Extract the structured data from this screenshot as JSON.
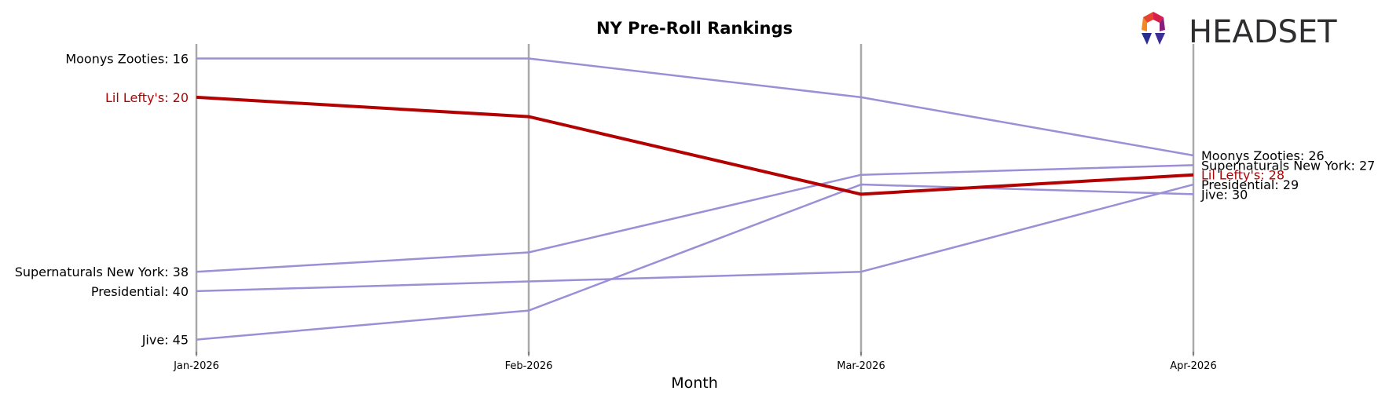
{
  "chart_data": {
    "type": "line",
    "title": "NY Pre-Roll Rankings",
    "xlabel": "Month",
    "ylabel": "",
    "x": [
      "Jan-2026",
      "Feb-2026",
      "Mar-2026",
      "Apr-2026"
    ],
    "y_inverted": true,
    "ylim": [
      14.5,
      46.5
    ],
    "highlight_color": "#b30000",
    "series_color": "#9b8fd6",
    "series": [
      {
        "name": "Moonys Zooties",
        "values": [
          16,
          16,
          20,
          26
        ],
        "highlight": false
      },
      {
        "name": "Supernaturals New York",
        "values": [
          38,
          36,
          28,
          27
        ],
        "highlight": false
      },
      {
        "name": "Presidential",
        "values": [
          40,
          39,
          38,
          29
        ],
        "highlight": false
      },
      {
        "name": "Jive",
        "values": [
          45,
          42,
          29,
          30
        ],
        "highlight": false
      },
      {
        "name": "Lil Lefty's",
        "values": [
          20,
          22,
          30,
          28
        ],
        "highlight": true
      }
    ],
    "start_labels": [
      "Moonys Zooties: 16",
      "Supernaturals New York: 38",
      "Presidential: 40",
      "Jive: 45",
      "Lil Lefty's: 20"
    ],
    "end_labels": [
      "Moonys Zooties: 26",
      "Supernaturals New York: 27",
      "Presidential: 29",
      "Jive: 30",
      "Lil Lefty's: 28"
    ]
  },
  "logo": {
    "text": "HEADSET"
  }
}
